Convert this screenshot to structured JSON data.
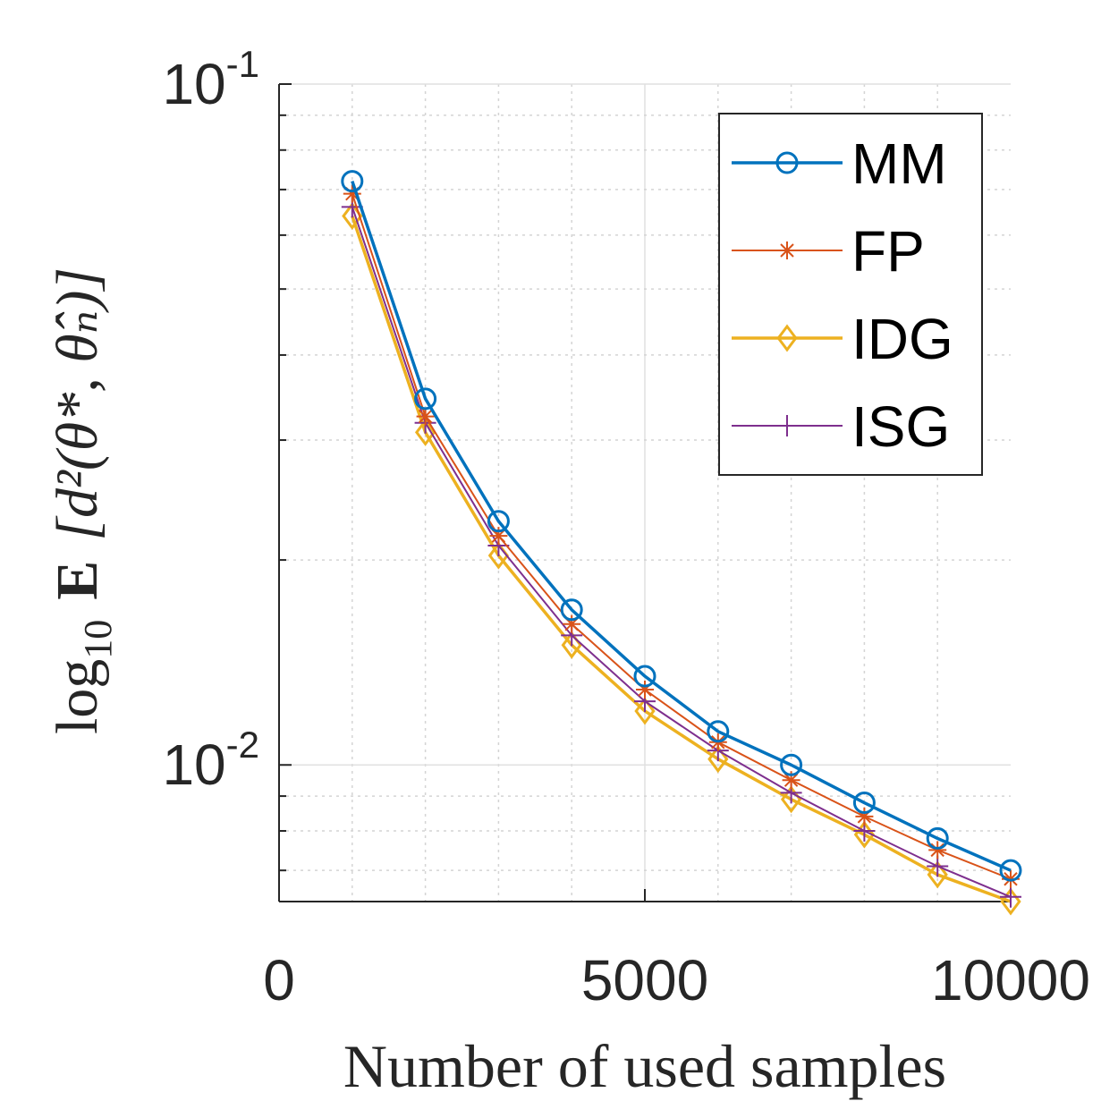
{
  "chart_data": {
    "type": "line",
    "xlabel": "Number of used samples",
    "ylabel": {
      "prefix": "log",
      "sub": "10",
      "operator": "E",
      "argument": "[d²(θ*, θ̂ₙ)]"
    },
    "xlim": [
      0,
      10000
    ],
    "ylim": [
      0.0063,
      0.1
    ],
    "yscale": "log",
    "grid": true,
    "legend_position": "top-right",
    "x_ticks": [
      "0",
      "5000",
      "10000"
    ],
    "y_ticks": [
      {
        "value": 0.1,
        "base": "10",
        "exp": "-1"
      },
      {
        "value": 0.01,
        "base": "10",
        "exp": "-2"
      }
    ],
    "x": [
      1000,
      2000,
      3000,
      4000,
      5000,
      6000,
      7000,
      8000,
      9000,
      10000
    ],
    "series": [
      {
        "name": "MM",
        "color": "#0072BD",
        "marker": "circle",
        "values": [
          0.072,
          0.0345,
          0.0228,
          0.0169,
          0.0135,
          0.0112,
          0.01,
          0.0088,
          0.0078,
          0.007
        ]
      },
      {
        "name": "FP",
        "color": "#D95319",
        "marker": "asterisk",
        "values": [
          0.069,
          0.0325,
          0.0217,
          0.0161,
          0.0129,
          0.0108,
          0.0095,
          0.0084,
          0.0075,
          0.0068
        ]
      },
      {
        "name": "IDG",
        "color": "#EDB120",
        "marker": "diamond",
        "values": [
          0.064,
          0.0308,
          0.0203,
          0.015,
          0.012,
          0.0102,
          0.0089,
          0.0079,
          0.0069,
          0.0063
        ]
      },
      {
        "name": "ISG",
        "color": "#7E2F8E",
        "marker": "plus",
        "values": [
          0.066,
          0.0318,
          0.021,
          0.0155,
          0.0124,
          0.0105,
          0.0091,
          0.008,
          0.0071,
          0.0064
        ]
      }
    ]
  }
}
